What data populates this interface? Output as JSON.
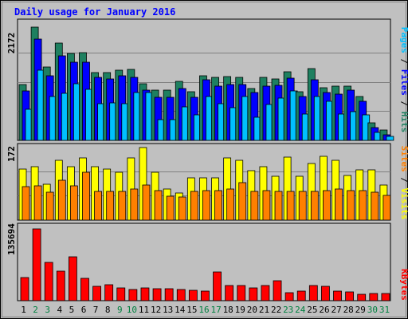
{
  "chart_data": [
    {
      "type": "bar",
      "title": "Daily usage for January 2016",
      "ymax_label": "2172",
      "legend_parts": [
        "Pages",
        "Files",
        "Hits"
      ],
      "legend_sep": " / ",
      "ylim": [
        0,
        2172
      ],
      "categories": [
        "1",
        "2",
        "3",
        "4",
        "5",
        "6",
        "7",
        "8",
        "9",
        "10",
        "11",
        "12",
        "13",
        "14",
        "15",
        "16",
        "17",
        "18",
        "19",
        "20",
        "21",
        "22",
        "23",
        "24",
        "25",
        "26",
        "27",
        "28",
        "29",
        "30",
        "31"
      ],
      "series": [
        {
          "name": "Hits",
          "color": "#1e8060",
          "values": [
            1030,
            2100,
            1360,
            1800,
            1610,
            1620,
            1260,
            1260,
            1300,
            1320,
            1050,
            925,
            925,
            1100,
            908,
            1200,
            1160,
            1180,
            1160,
            960,
            1160,
            1145,
            1270,
            900,
            1330,
            970,
            1010,
            1000,
            810,
            320,
            190
          ]
        },
        {
          "name": "Files",
          "color": "#0000ff",
          "values": [
            920,
            1880,
            1200,
            1570,
            1450,
            1450,
            1160,
            1140,
            1190,
            1160,
            930,
            800,
            800,
            960,
            800,
            1120,
            1010,
            1030,
            1030,
            890,
            1000,
            1020,
            1150,
            810,
            1130,
            880,
            860,
            930,
            730,
            240,
            100
          ]
        },
        {
          "name": "Pages",
          "color": "#00c0ff",
          "values": [
            570,
            1300,
            810,
            870,
            1050,
            950,
            680,
            690,
            680,
            890,
            890,
            390,
            390,
            620,
            470,
            810,
            680,
            610,
            820,
            430,
            670,
            790,
            920,
            490,
            810,
            720,
            490,
            530,
            470,
            150,
            75
          ]
        }
      ]
    },
    {
      "type": "bar",
      "ymax_label": "172",
      "legend_parts": [
        "Sites",
        "Visits"
      ],
      "legend_sep": " / ",
      "ylim": [
        0,
        172
      ],
      "categories": [
        "1",
        "2",
        "3",
        "4",
        "5",
        "6",
        "7",
        "8",
        "9",
        "10",
        "11",
        "12",
        "13",
        "14",
        "15",
        "16",
        "17",
        "18",
        "19",
        "20",
        "21",
        "22",
        "23",
        "24",
        "25",
        "26",
        "27",
        "28",
        "29",
        "30",
        "31"
      ],
      "series": [
        {
          "name": "Visits",
          "color": "#ffff00",
          "values": [
            120,
            125,
            85,
            140,
            125,
            145,
            125,
            120,
            113,
            145,
            170,
            113,
            72,
            63,
            100,
            100,
            100,
            145,
            140,
            115,
            125,
            103,
            148,
            103,
            133,
            150,
            140,
            105,
            118,
            118,
            83
          ]
        },
        {
          "name": "Sites",
          "color": "#ff8000",
          "values": [
            78,
            80,
            65,
            93,
            80,
            112,
            68,
            68,
            68,
            73,
            83,
            70,
            57,
            55,
            67,
            70,
            70,
            73,
            88,
            68,
            70,
            68,
            68,
            68,
            68,
            70,
            73,
            70,
            70,
            65,
            58
          ]
        }
      ]
    },
    {
      "type": "bar",
      "ymax_label": "135694",
      "legend_parts": [
        "KBytes"
      ],
      "legend_sep": "",
      "ylim": [
        0,
        135694
      ],
      "categories": [
        "1",
        "2",
        "3",
        "4",
        "5",
        "6",
        "7",
        "8",
        "9",
        "10",
        "11",
        "12",
        "13",
        "14",
        "15",
        "16",
        "17",
        "18",
        "19",
        "20",
        "21",
        "22",
        "23",
        "24",
        "25",
        "26",
        "27",
        "28",
        "29",
        "30",
        "31"
      ],
      "series": [
        {
          "name": "KBytes",
          "color": "#ff0000",
          "values": [
            43000,
            132000,
            70000,
            54000,
            80000,
            41000,
            26000,
            29000,
            23000,
            21000,
            23000,
            22000,
            22000,
            21000,
            19000,
            17000,
            53000,
            27000,
            28000,
            24000,
            27000,
            37000,
            14000,
            17000,
            28000,
            26000,
            17000,
            16000,
            12000,
            13000,
            13000
          ]
        }
      ]
    }
  ],
  "x_axis": {
    "days": [
      "1",
      "2",
      "3",
      "4",
      "5",
      "6",
      "7",
      "8",
      "9",
      "10",
      "11",
      "12",
      "13",
      "14",
      "15",
      "16",
      "17",
      "18",
      "19",
      "20",
      "21",
      "22",
      "23",
      "24",
      "25",
      "26",
      "27",
      "28",
      "29",
      "30",
      "31"
    ],
    "weekend_days": [
      "2",
      "3",
      "9",
      "10",
      "16",
      "17",
      "23",
      "24",
      "30",
      "31"
    ],
    "weekday_color": "#000000",
    "weekend_color": "#008040"
  },
  "colors": {
    "frame_bg": "#c0c0c0",
    "border_dark": "#000000",
    "title_color": "#0000ff",
    "gridline": "#808080"
  }
}
